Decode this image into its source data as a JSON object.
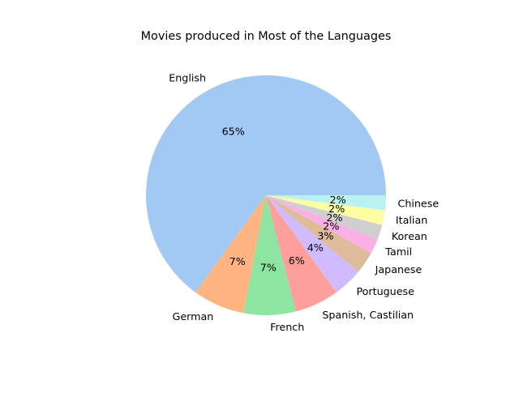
{
  "chart_data": {
    "type": "pie",
    "title": "Movies produced in Most of the Languages",
    "start_angle_deg": 0,
    "direction": "counterclockwise",
    "slices": [
      {
        "label": "English",
        "value": 65,
        "pct_text": "65%",
        "color": "#a1c9f4"
      },
      {
        "label": "German",
        "value": 7,
        "pct_text": "7%",
        "color": "#ffb482"
      },
      {
        "label": "French",
        "value": 7,
        "pct_text": "7%",
        "color": "#8de5a1"
      },
      {
        "label": "Spanish, Castilian",
        "value": 6,
        "pct_text": "6%",
        "color": "#ff9f9b"
      },
      {
        "label": "Portuguese",
        "value": 4,
        "pct_text": "4%",
        "color": "#d0bbff"
      },
      {
        "label": "Japanese",
        "value": 3,
        "pct_text": "3%",
        "color": "#debb9b"
      },
      {
        "label": "Tamil",
        "value": 2,
        "pct_text": "2%",
        "color": "#fab0e4"
      },
      {
        "label": "Korean",
        "value": 2,
        "pct_text": "2%",
        "color": "#cfcfcf"
      },
      {
        "label": "Italian",
        "value": 2,
        "pct_text": "2%",
        "color": "#fffea3"
      },
      {
        "label": "Chinese",
        "value": 2,
        "pct_text": "2%",
        "color": "#b9f2f0"
      }
    ]
  }
}
